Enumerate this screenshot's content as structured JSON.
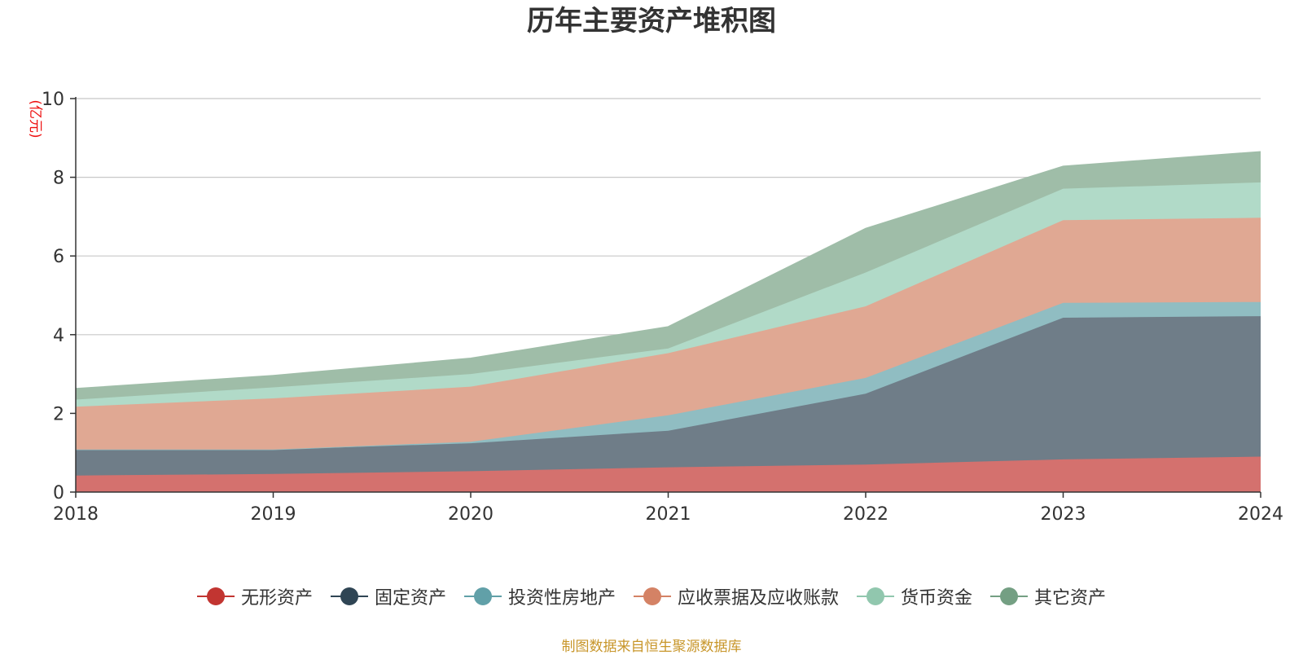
{
  "chart_data": {
    "type": "area",
    "stacked": true,
    "title": "历年主要资产堆积图",
    "ylabel": "(亿元)",
    "xlabel": "",
    "ylim": [
      0,
      10
    ],
    "yticks": [
      0,
      2,
      4,
      6,
      8,
      10
    ],
    "grid": true,
    "legend_position": "bottom",
    "categories": [
      "2018",
      "2019",
      "2020",
      "2021",
      "2022",
      "2023",
      "2024"
    ],
    "series": [
      {
        "name": "无形资产",
        "color": "#c23531",
        "fill": "#d4716e",
        "values": [
          0.42,
          0.46,
          0.53,
          0.63,
          0.7,
          0.83,
          0.9
        ]
      },
      {
        "name": "固定资产",
        "color": "#2f4554",
        "fill": "#6f7d88",
        "values": [
          0.66,
          0.62,
          0.71,
          0.93,
          1.8,
          3.6,
          3.57
        ]
      },
      {
        "name": "投资性房地产",
        "color": "#61a0a8",
        "fill": "#90bdc2",
        "values": [
          0.0,
          0.0,
          0.04,
          0.39,
          0.4,
          0.38,
          0.36
        ]
      },
      {
        "name": "应收票据及应收账款",
        "color": "#d48265",
        "fill": "#e0a893",
        "values": [
          1.09,
          1.3,
          1.4,
          1.58,
          1.82,
          2.1,
          2.14
        ]
      },
      {
        "name": "货币资金",
        "color": "#91c7ae",
        "fill": "#b1dac8",
        "values": [
          0.18,
          0.28,
          0.32,
          0.12,
          0.86,
          0.8,
          0.9
        ]
      },
      {
        "name": "其它资产",
        "color": "#749f83",
        "fill": "#9fbda8",
        "values": [
          0.28,
          0.3,
          0.4,
          0.55,
          1.12,
          0.57,
          0.78
        ]
      }
    ]
  },
  "source_note": "制图数据来自恒生聚源数据库"
}
